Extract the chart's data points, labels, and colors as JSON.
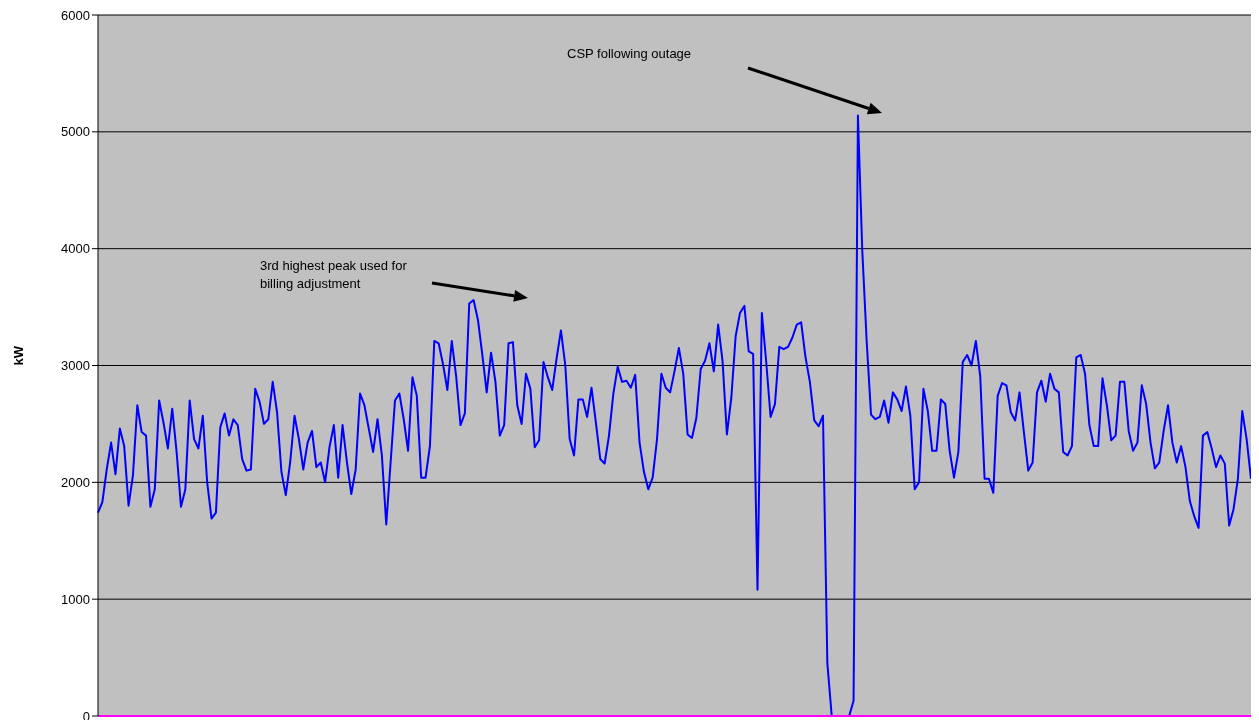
{
  "chart_data": {
    "type": "line",
    "ylabel": "kW",
    "ylim": [
      0,
      6000
    ],
    "yticks": [
      0,
      1000,
      2000,
      3000,
      4000,
      5000,
      6000
    ],
    "grid": "y",
    "categories": [
      null,
      null,
      null,
      null,
      null,
      null,
      null,
      null,
      null,
      null,
      null,
      null,
      null,
      null,
      null,
      null,
      null,
      null,
      null,
      null,
      null,
      null,
      null,
      null,
      null,
      null,
      null,
      null,
      null,
      null,
      null,
      null,
      null,
      null,
      null,
      null,
      null,
      null,
      null,
      null,
      null,
      null,
      null,
      null,
      null,
      null,
      null,
      null,
      null,
      null,
      null,
      null,
      null,
      null,
      null,
      null,
      null,
      null,
      null,
      null,
      null,
      null,
      null,
      null,
      null,
      null,
      null,
      null,
      null,
      null,
      null,
      null,
      null,
      null,
      null,
      null,
      null,
      null,
      null,
      null,
      null,
      null,
      null,
      null,
      null,
      null,
      null,
      null,
      null,
      null,
      null,
      null,
      null,
      null,
      null,
      null,
      null,
      null,
      null,
      null,
      null,
      null,
      null,
      null,
      null,
      null,
      null,
      null,
      null,
      null,
      null,
      null,
      null,
      null,
      null,
      null,
      null,
      null,
      null,
      null,
      null,
      null,
      null,
      null,
      null,
      null,
      null,
      null,
      null,
      null,
      null,
      null,
      null,
      null,
      null,
      null,
      null,
      null,
      null,
      null,
      null,
      null,
      null,
      null,
      null,
      null,
      null,
      null,
      null,
      null,
      null,
      null,
      null,
      null,
      null,
      null,
      null,
      null,
      null,
      null,
      null,
      null,
      null,
      null,
      null,
      null,
      null,
      null,
      null,
      null,
      null,
      null,
      null,
      null,
      null,
      null,
      null,
      null,
      null,
      null,
      null,
      null,
      null,
      null,
      null,
      null,
      null,
      null,
      null,
      null,
      null,
      null,
      null,
      null,
      null,
      null,
      null,
      null,
      null,
      null,
      null,
      null,
      null,
      null,
      null,
      null,
      null,
      null,
      null,
      null,
      null,
      null,
      null,
      null,
      null,
      null,
      null,
      null,
      null,
      null,
      null,
      null,
      null,
      null,
      null,
      null,
      null,
      null,
      null,
      null,
      null,
      null,
      null,
      null,
      null,
      null,
      null,
      null,
      null,
      null,
      null,
      null,
      null,
      null,
      null,
      null,
      null,
      null,
      null,
      null,
      null,
      null,
      null,
      null,
      null,
      null,
      null,
      null,
      null,
      null,
      null,
      null,
      null,
      null,
      null
    ],
    "series": [
      {
        "color": "#0000ff",
        "values": [
          1740,
          1830,
          2110,
          2340,
          2070,
          2460,
          2310,
          1800,
          2060,
          2660,
          2430,
          2400,
          1790,
          1940,
          2700,
          2510,
          2290,
          2630,
          2260,
          1790,
          1940,
          2700,
          2370,
          2290,
          2570,
          2000,
          1690,
          1740,
          2470,
          2590,
          2400,
          2540,
          2490,
          2200,
          2100,
          2110,
          2800,
          2690,
          2500,
          2540,
          2860,
          2600,
          2090,
          1890,
          2170,
          2570,
          2370,
          2110,
          2340,
          2440,
          2130,
          2170,
          2000,
          2300,
          2490,
          2040,
          2490,
          2170,
          1900,
          2110,
          2760,
          2660,
          2460,
          2260,
          2540,
          2230,
          1640,
          2170,
          2700,
          2760,
          2540,
          2270,
          2900,
          2740,
          2040,
          2040,
          2310,
          3210,
          3190,
          3010,
          2790,
          3210,
          2910,
          2490,
          2590,
          3530,
          3560,
          3390,
          3090,
          2770,
          3110,
          2860,
          2400,
          2490,
          3190,
          3200,
          2660,
          2500,
          2930,
          2800,
          2300,
          2360,
          3030,
          2900,
          2790,
          3060,
          3300,
          3000,
          2370,
          2230,
          2710,
          2710,
          2560,
          2810,
          2510,
          2200,
          2160,
          2400,
          2760,
          2990,
          2860,
          2870,
          2810,
          2920,
          2340,
          2090,
          1940,
          2040,
          2370,
          2930,
          2810,
          2770,
          2950,
          3150,
          2930,
          2410,
          2380,
          2550,
          2970,
          3040,
          3190,
          2950,
          3350,
          3040,
          2410,
          2720,
          3250,
          3450,
          3510,
          3120,
          3100,
          1080,
          3450,
          3030,
          2560,
          2670,
          3160,
          3140,
          3160,
          3240,
          3350,
          3370,
          3070,
          2860,
          2530,
          2480,
          2570,
          450,
          0,
          0,
          0,
          0,
          0,
          130,
          5140,
          3980,
          3210,
          2580,
          2540,
          2560,
          2700,
          2510,
          2770,
          2710,
          2610,
          2820,
          2570,
          1940,
          2000,
          2800,
          2610,
          2270,
          2270,
          2710,
          2670,
          2270,
          2040,
          2260,
          3030,
          3090,
          3000,
          3210,
          2910,
          2030,
          2030,
          1910,
          2740,
          2850,
          2830,
          2600,
          2530,
          2770,
          2430,
          2100,
          2170,
          2770,
          2870,
          2690,
          2930,
          2800,
          2770,
          2260,
          2230,
          2310,
          3070,
          3090,
          2930,
          2490,
          2310,
          2310,
          2890,
          2660,
          2360,
          2400,
          2860,
          2860,
          2440,
          2270,
          2340,
          2830,
          2670,
          2340,
          2120,
          2170,
          2440,
          2660,
          2340,
          2170,
          2310,
          2130,
          1840,
          1710,
          1610,
          2400,
          2430,
          2290,
          2130,
          2230,
          2160,
          1630,
          1770,
          2030,
          2610,
          2370,
          2030
        ]
      }
    ],
    "ref_lines": [
      {
        "axis": "y",
        "value": 0,
        "color": "#ff00ff"
      }
    ],
    "annotations": [
      "3rd highest peak used for\nbilling adjustment",
      "CSP following outage"
    ]
  }
}
